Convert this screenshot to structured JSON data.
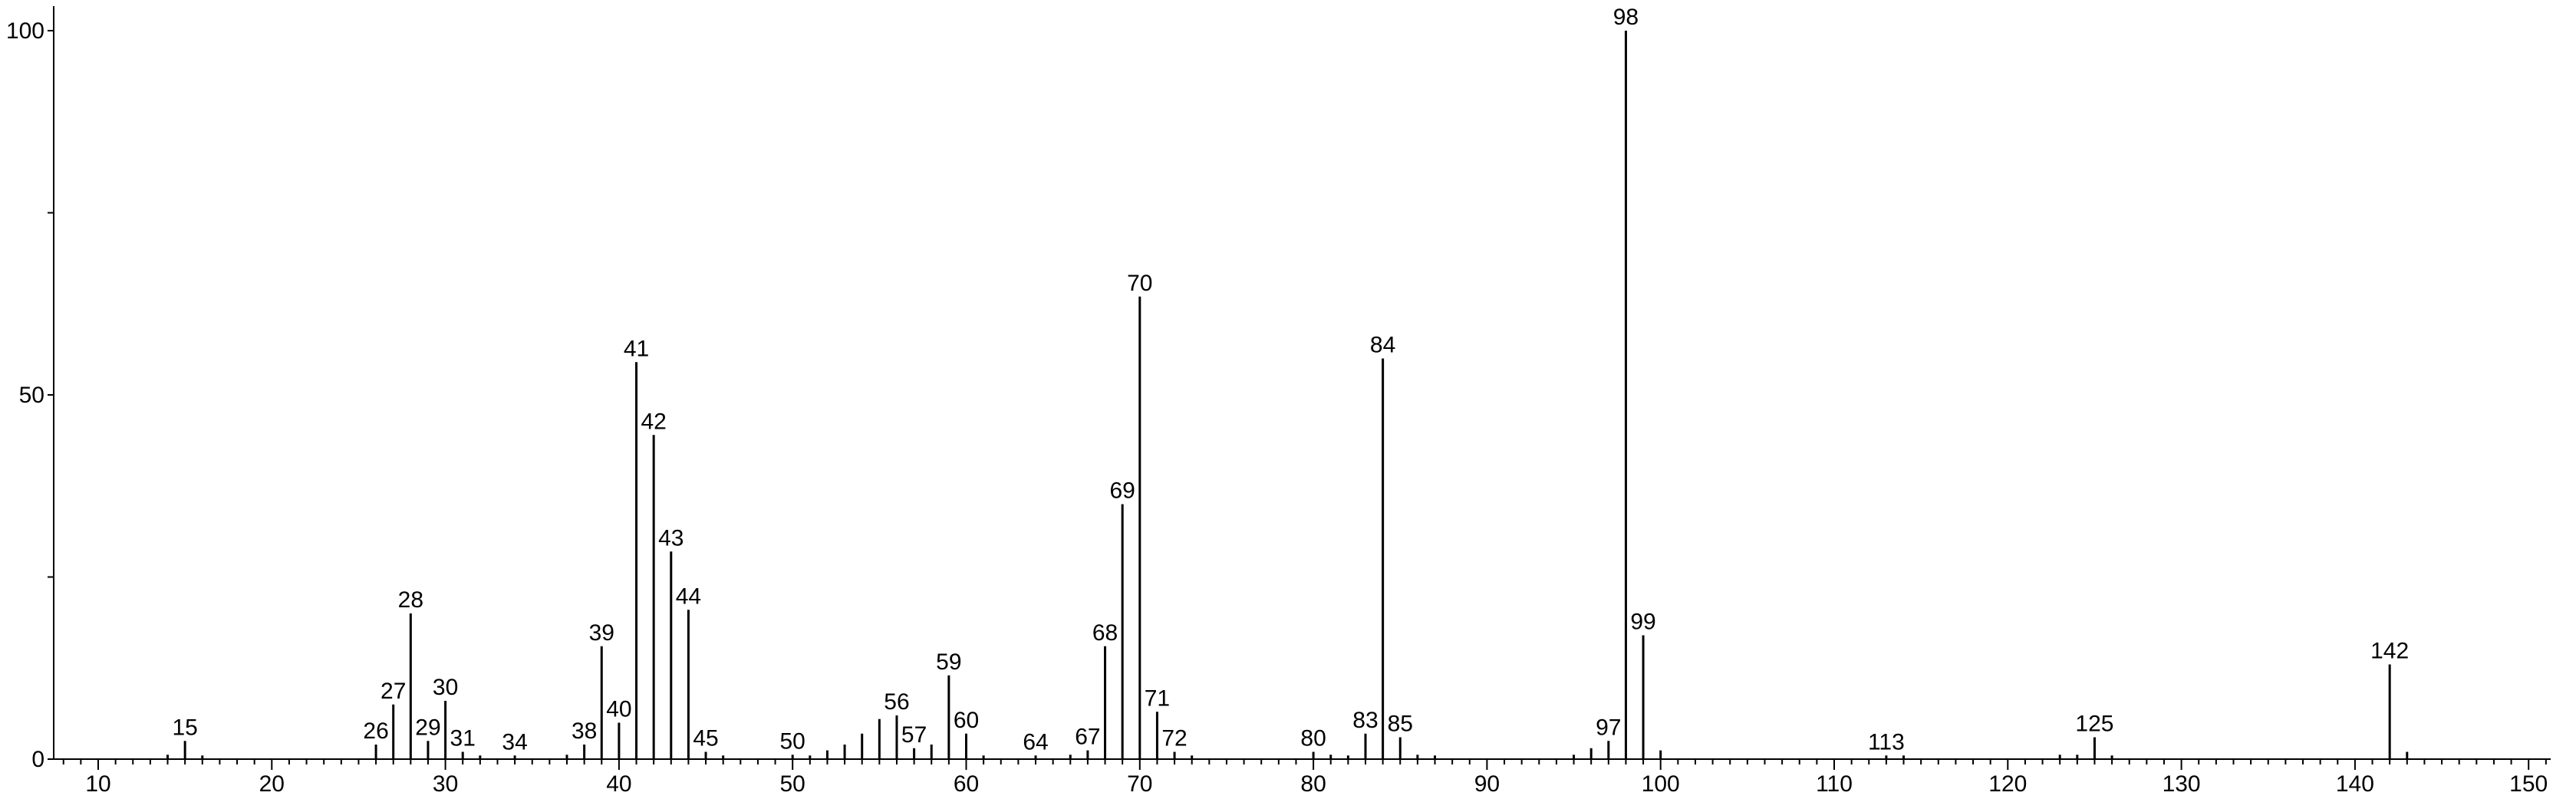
{
  "chart_data": {
    "type": "bar",
    "title": "",
    "xlabel": "",
    "ylabel": "",
    "xlim": [
      7,
      152
    ],
    "ylim": [
      0,
      100
    ],
    "x_ticks": [
      "10",
      "20",
      "30",
      "40",
      "50",
      "60",
      "70",
      "80",
      "90",
      "100",
      "110",
      "120",
      "130",
      "140",
      "150"
    ],
    "y_ticks": [
      "0",
      "50",
      "100"
    ],
    "grid": false,
    "peaks": [
      {
        "x": 14,
        "y": 0.6,
        "label": ""
      },
      {
        "x": 15,
        "y": 2.5,
        "label": "15"
      },
      {
        "x": 16,
        "y": 0.5,
        "label": ""
      },
      {
        "x": 26,
        "y": 2.0,
        "label": "26"
      },
      {
        "x": 27,
        "y": 7.5,
        "label": "27"
      },
      {
        "x": 28,
        "y": 20.0,
        "label": "28"
      },
      {
        "x": 29,
        "y": 2.5,
        "label": "29"
      },
      {
        "x": 30,
        "y": 8.0,
        "label": "30"
      },
      {
        "x": 31,
        "y": 1.0,
        "label": "31"
      },
      {
        "x": 32,
        "y": 0.5,
        "label": ""
      },
      {
        "x": 34,
        "y": 0.5,
        "label": "34"
      },
      {
        "x": 37,
        "y": 0.6,
        "label": ""
      },
      {
        "x": 38,
        "y": 2.0,
        "label": "38"
      },
      {
        "x": 39,
        "y": 15.5,
        "label": "39"
      },
      {
        "x": 40,
        "y": 5.0,
        "label": "40"
      },
      {
        "x": 41,
        "y": 54.5,
        "label": "41"
      },
      {
        "x": 42,
        "y": 44.5,
        "label": "42"
      },
      {
        "x": 43,
        "y": 28.5,
        "label": "43"
      },
      {
        "x": 44,
        "y": 20.5,
        "label": "44"
      },
      {
        "x": 45,
        "y": 1.0,
        "label": "45"
      },
      {
        "x": 46,
        "y": 0.5,
        "label": ""
      },
      {
        "x": 50,
        "y": 0.6,
        "label": "50"
      },
      {
        "x": 51,
        "y": 0.5,
        "label": ""
      },
      {
        "x": 52,
        "y": 1.2,
        "label": ""
      },
      {
        "x": 53,
        "y": 2.0,
        "label": ""
      },
      {
        "x": 54,
        "y": 3.5,
        "label": ""
      },
      {
        "x": 55,
        "y": 5.5,
        "label": ""
      },
      {
        "x": 56,
        "y": 6.0,
        "label": "56"
      },
      {
        "x": 57,
        "y": 1.5,
        "label": "57"
      },
      {
        "x": 58,
        "y": 2.0,
        "label": ""
      },
      {
        "x": 59,
        "y": 11.5,
        "label": "59"
      },
      {
        "x": 60,
        "y": 3.5,
        "label": "60"
      },
      {
        "x": 61,
        "y": 0.5,
        "label": ""
      },
      {
        "x": 64,
        "y": 0.5,
        "label": "64"
      },
      {
        "x": 66,
        "y": 0.6,
        "label": ""
      },
      {
        "x": 67,
        "y": 1.2,
        "label": "67"
      },
      {
        "x": 68,
        "y": 15.5,
        "label": "68"
      },
      {
        "x": 69,
        "y": 35.0,
        "label": "69"
      },
      {
        "x": 70,
        "y": 63.5,
        "label": "70"
      },
      {
        "x": 71,
        "y": 6.5,
        "label": "71"
      },
      {
        "x": 72,
        "y": 1.0,
        "label": "72"
      },
      {
        "x": 73,
        "y": 0.5,
        "label": ""
      },
      {
        "x": 80,
        "y": 1.0,
        "label": "80"
      },
      {
        "x": 81,
        "y": 0.6,
        "label": ""
      },
      {
        "x": 82,
        "y": 0.5,
        "label": ""
      },
      {
        "x": 83,
        "y": 3.5,
        "label": "83"
      },
      {
        "x": 84,
        "y": 55.0,
        "label": "84"
      },
      {
        "x": 85,
        "y": 3.0,
        "label": "85"
      },
      {
        "x": 86,
        "y": 0.6,
        "label": ""
      },
      {
        "x": 87,
        "y": 0.5,
        "label": ""
      },
      {
        "x": 95,
        "y": 0.6,
        "label": ""
      },
      {
        "x": 96,
        "y": 1.5,
        "label": ""
      },
      {
        "x": 97,
        "y": 2.5,
        "label": "97"
      },
      {
        "x": 98,
        "y": 100.0,
        "label": "98"
      },
      {
        "x": 99,
        "y": 17.0,
        "label": "99"
      },
      {
        "x": 100,
        "y": 1.2,
        "label": ""
      },
      {
        "x": 113,
        "y": 0.5,
        "label": "113"
      },
      {
        "x": 114,
        "y": 0.5,
        "label": ""
      },
      {
        "x": 123,
        "y": 0.6,
        "label": ""
      },
      {
        "x": 124,
        "y": 0.6,
        "label": ""
      },
      {
        "x": 125,
        "y": 3.0,
        "label": "125"
      },
      {
        "x": 126,
        "y": 0.5,
        "label": ""
      },
      {
        "x": 142,
        "y": 13.0,
        "label": "142"
      },
      {
        "x": 143,
        "y": 1.0,
        "label": ""
      }
    ]
  }
}
